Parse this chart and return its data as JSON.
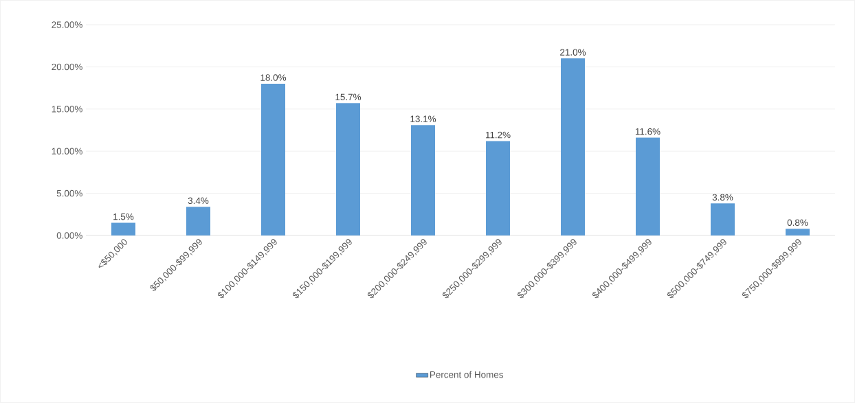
{
  "chart_data": {
    "type": "bar",
    "categories": [
      "<$50,000",
      "$50,000-$99,999",
      "$100,000-$149,999",
      "$150,000-$199,999",
      "$200,000-$249,999",
      "$250,000-$299,999",
      "$300,000-$399,999",
      "$400,000-$499,999",
      "$500,000-$749,999",
      "$750,000-$999,999"
    ],
    "series": [
      {
        "name": "Percent of Homes",
        "color": "#5b9bd5",
        "values": [
          1.5,
          3.4,
          18.0,
          15.7,
          13.1,
          11.2,
          21.0,
          11.6,
          3.8,
          0.8
        ],
        "value_labels": [
          "1.5%",
          "3.4%",
          "18.0%",
          "15.7%",
          "13.1%",
          "11.2%",
          "21.0%",
          "11.6%",
          "3.8%",
          "0.8%"
        ]
      }
    ],
    "ylim": [
      0,
      25
    ],
    "yticks": [
      {
        "value": 0,
        "label": "0.00%"
      },
      {
        "value": 5,
        "label": "5.00%"
      },
      {
        "value": 10,
        "label": "10.00%"
      },
      {
        "value": 15,
        "label": "15.00%"
      },
      {
        "value": 20,
        "label": "20.00%"
      },
      {
        "value": 25,
        "label": "25.00%"
      }
    ],
    "grid": "y",
    "legend": "bottom"
  }
}
